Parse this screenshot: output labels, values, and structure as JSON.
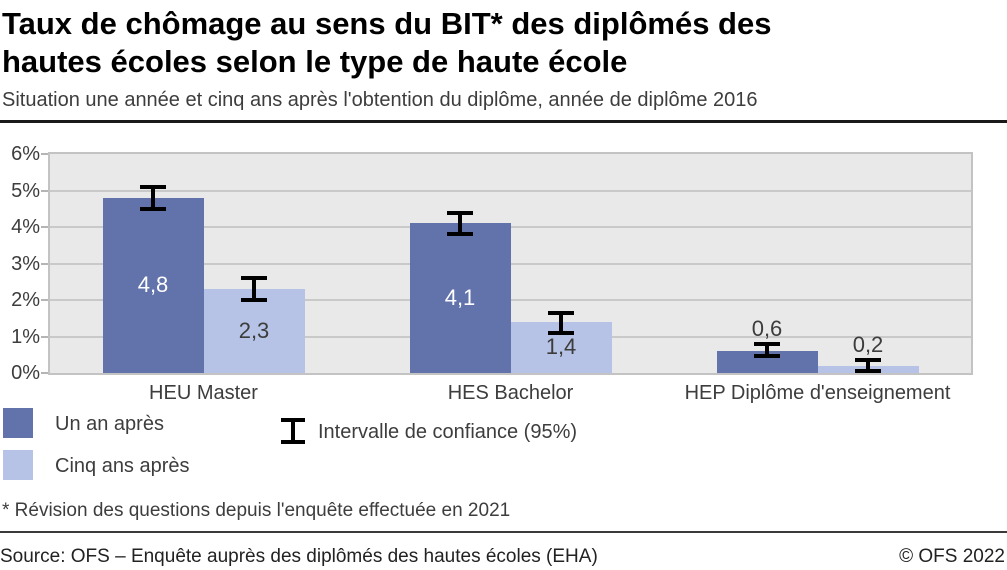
{
  "header": {
    "title": "Taux de chômage au sens du BIT* des diplômés des hautes écoles selon le type de haute école",
    "subtitle": "Situation une année et cinq ans après l'obtention du diplôme, année de diplôme 2016"
  },
  "chart_data": {
    "type": "bar",
    "title": "Taux de chômage au sens du BIT* des diplômés des hautes écoles selon le type de haute école",
    "categories": [
      "HEU Master",
      "HES Bachelor",
      "HEP Diplôme d'enseignement"
    ],
    "series": [
      {
        "name": "Un an après",
        "color": "#6272ab",
        "value_label_color_inside": "#ffffff",
        "values": [
          4.8,
          4.1,
          0.6
        ],
        "labels": [
          "4,8",
          "4,1",
          "0,6"
        ],
        "ci": [
          [
            4.45,
            5.15
          ],
          [
            3.75,
            4.45
          ],
          [
            0.4,
            0.85
          ]
        ]
      },
      {
        "name": "Cinq ans après",
        "color": "#b6c3e6",
        "value_label_color_inside": "#3c3c3c",
        "values": [
          2.3,
          1.4,
          0.2
        ],
        "labels": [
          "2,3",
          "1,4",
          "0,2"
        ],
        "ci": [
          [
            1.95,
            2.65
          ],
          [
            1.05,
            1.7
          ],
          [
            0.0,
            0.4
          ]
        ]
      }
    ],
    "ylim": [
      0,
      6
    ],
    "y_ticks": [
      "0%",
      "1%",
      "2%",
      "3%",
      "4%",
      "5%",
      "6%"
    ],
    "y_unit": "%",
    "grid": "horizontal",
    "error_bars": "95% confidence interval",
    "legend_position": "below-left"
  },
  "legend": {
    "items": [
      {
        "label": "Un an après",
        "color": "#6272ab"
      },
      {
        "label": "Cinq ans après",
        "color": "#b6c3e6"
      }
    ],
    "ci_label": "Intervalle de confiance (95%)"
  },
  "footnote": "* Révision des questions depuis l'enquête effectuée en 2021",
  "footer": {
    "source": "Source: OFS – Enquête auprès des diplômés des hautes écoles (EHA)",
    "copyright": "© OFS 2022"
  },
  "colors": {
    "series_dark": "#6272ab",
    "series_light": "#b6c3e6",
    "plot_background": "#e9e9e9",
    "gridline": "#c9c9c9",
    "error_bar": "#000000",
    "value_label_outside": "#3c3c3c"
  }
}
